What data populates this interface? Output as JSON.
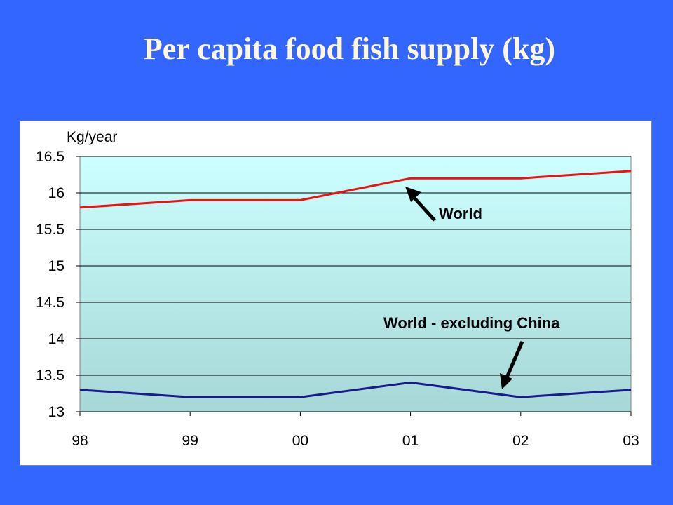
{
  "slide": {
    "title": "Per capita food fish supply (kg)"
  },
  "chart_data": {
    "type": "line",
    "title": "Per capita food fish supply (kg)",
    "ylabel": "Kg/year",
    "xlabel": "",
    "categories": [
      "98",
      "99",
      "00",
      "01",
      "02",
      "03"
    ],
    "ylim": [
      13,
      16.5
    ],
    "yticks": [
      16.5,
      16,
      15.5,
      15,
      14.5,
      14,
      13.5,
      13
    ],
    "grid": true,
    "series": [
      {
        "name": "World",
        "color": "#ee1111",
        "values": [
          15.8,
          15.9,
          15.9,
          16.2,
          16.2,
          16.3
        ]
      },
      {
        "name": "World - excluding China",
        "color": "#1a1a8c",
        "values": [
          13.3,
          13.2,
          13.2,
          13.4,
          13.2,
          13.3
        ]
      }
    ],
    "annotations": [
      {
        "text": "World",
        "points_to": {
          "series": "World",
          "category": "01"
        }
      },
      {
        "text": "World - excluding China",
        "points_to": {
          "series": "World - excluding China",
          "category": "02"
        }
      }
    ],
    "colors": {
      "page_background": "#3366ff",
      "plot_gradient_top": "#ccffff",
      "plot_gradient_bottom": "#a7d7d7"
    }
  }
}
